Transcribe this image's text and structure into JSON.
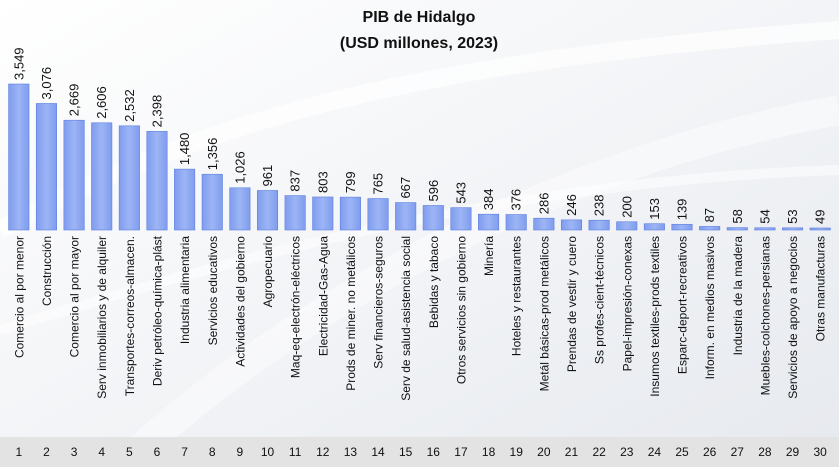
{
  "chart_data": {
    "type": "bar",
    "title": "PIB de Hidalgo",
    "subtitle": "(USD millones, 2023)",
    "xlabel": "",
    "ylabel": "",
    "grid": false,
    "legend": "none",
    "categories": [
      "Comercio al por menor",
      "Construcción",
      "Comercio al por mayor",
      "Serv inmobiliarios y de alquiler",
      "Transportes-correos-almacen.",
      "Deriv petróleo-química-plást",
      "Industria alimentaria",
      "Servicios educativos",
      "Actividades del gobierno",
      "Agropecuario",
      "Maq-eq-electrón-eléctricos",
      "Electricidad-Gas-Agua",
      "Prods de miner. no metálicos",
      "Serv financieros-seguros",
      "Serv de salud-asistencia social",
      "Bebidas y tabaco",
      "Otros servicios sin gobierno",
      "Minería",
      "Hoteles y restaurantes",
      "Metál básicas-prod metálicos",
      "Prendas de vestir y cuero",
      "Ss profes-cient-técnicos",
      "Papel-impresión-conexas",
      "Insumos textiles-prods textiles",
      "Esparc-deport-recreativos",
      "Inform. en medios masivos",
      "Industria de la madera",
      "Muebles-colchones-persianas",
      "Servicios de apoyo a negocios",
      "Otras manufacturas"
    ],
    "values": [
      3549,
      3076,
      2669,
      2606,
      2532,
      2398,
      1480,
      1356,
      1026,
      961,
      837,
      803,
      799,
      765,
      667,
      596,
      543,
      384,
      376,
      286,
      246,
      238,
      200,
      153,
      139,
      87,
      58,
      54,
      53,
      49
    ],
    "value_labels": [
      "3,549",
      "3,076",
      "2,669",
      "2,606",
      "2,532",
      "2,398",
      "1,480",
      "1,356",
      "1,026",
      "961",
      "837",
      "803",
      "799",
      "765",
      "667",
      "596",
      "543",
      "384",
      "376",
      "286",
      "246",
      "238",
      "200",
      "153",
      "139",
      "87",
      "58",
      "54",
      "53",
      "49"
    ],
    "ranks": [
      "1",
      "2",
      "3",
      "4",
      "5",
      "6",
      "7",
      "8",
      "9",
      "10",
      "11",
      "12",
      "13",
      "14",
      "15",
      "16",
      "17",
      "18",
      "19",
      "20",
      "21",
      "22",
      "23",
      "24",
      "25",
      "26",
      "27",
      "28",
      "29",
      "30"
    ],
    "ylim": [
      0,
      3549
    ],
    "colors": {
      "bar": "#8fa9f0",
      "bar_edge": "#5f80de",
      "background": "#ffffff",
      "rank_band": "#e3e3e3",
      "text": "#111111"
    }
  }
}
